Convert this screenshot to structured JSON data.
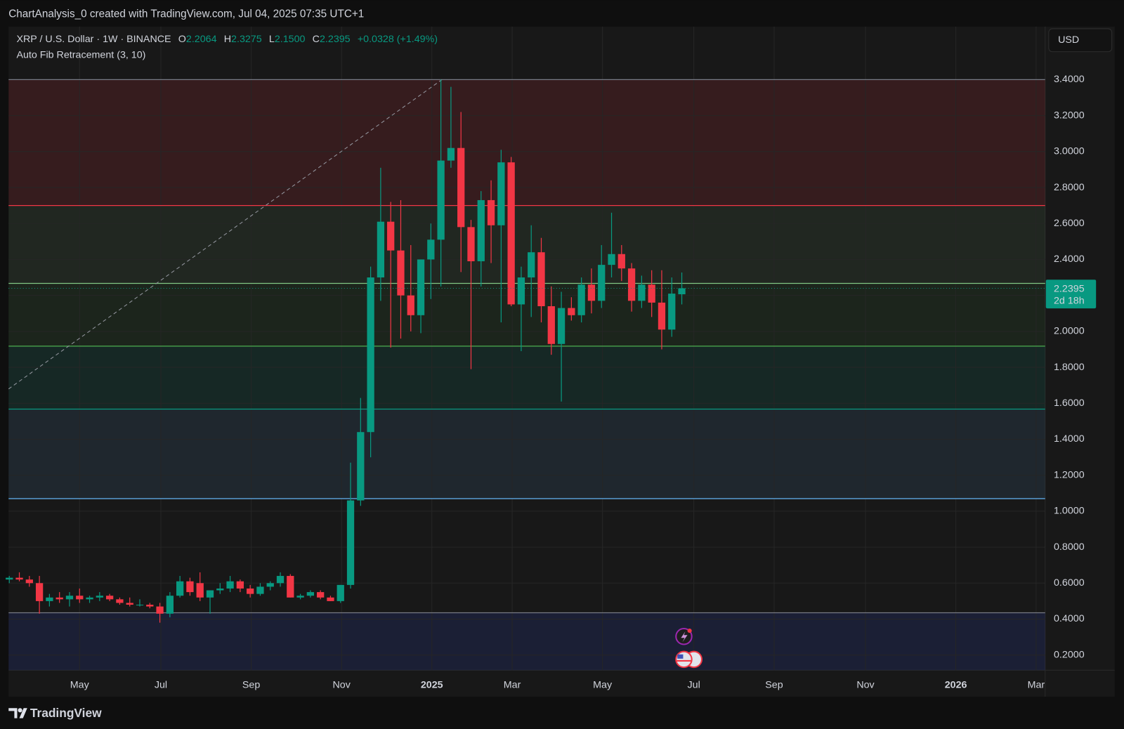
{
  "header": {
    "attribution": "ChartAnalysis_0 created with TradingView.com, Jul 04, 2025 07:35 UTC+1",
    "symbol": "XRP / U.S. Dollar · 1W · BINANCE",
    "ohlc": [
      {
        "label": "O",
        "value": "2.2064"
      },
      {
        "label": "H",
        "value": "2.3275"
      },
      {
        "label": "L",
        "value": "2.1500"
      },
      {
        "label": "C",
        "value": "2.2395"
      }
    ],
    "change": "+0.0328 (+1.49%)",
    "indicator": "Auto Fib Retracement (3, 10)",
    "currency_button": "USD"
  },
  "footer": {
    "brand": "TradingView"
  },
  "chart_data": {
    "type": "candlestick",
    "up_color": "#089981",
    "down_color": "#f23645",
    "grid": true,
    "xlim": [
      -0.07,
      103.2
    ],
    "ylim": [
      0.116,
      3.695
    ],
    "xticks": [
      {
        "value": 7.0,
        "label": "May"
      },
      {
        "value": 15.1,
        "label": "Jul"
      },
      {
        "value": 24.1,
        "label": "Sep"
      },
      {
        "value": 33.1,
        "label": "Nov"
      },
      {
        "value": 42.1,
        "label": "2025",
        "bold": true
      },
      {
        "value": 50.1,
        "label": "Mar"
      },
      {
        "value": 59.1,
        "label": "May"
      },
      {
        "value": 68.2,
        "label": "Jul"
      },
      {
        "value": 76.2,
        "label": "Sep"
      },
      {
        "value": 85.3,
        "label": "Nov"
      },
      {
        "value": 94.3,
        "label": "2026",
        "bold": true
      },
      {
        "value": 102.3,
        "label": "Mar"
      }
    ],
    "yticks": [
      {
        "value": 0.2,
        "label": "0.2000"
      },
      {
        "value": 0.4,
        "label": "0.4000"
      },
      {
        "value": 0.6,
        "label": "0.6000"
      },
      {
        "value": 0.8,
        "label": "0.8000"
      },
      {
        "value": 1,
        "label": "1.0000"
      },
      {
        "value": 1.2,
        "label": "1.2000"
      },
      {
        "value": 1.4,
        "label": "1.4000"
      },
      {
        "value": 1.6,
        "label": "1.6000"
      },
      {
        "value": 1.8,
        "label": "1.8000"
      },
      {
        "value": 2,
        "label": "2.0000"
      },
      {
        "value": 2.2,
        "label": "2.2000"
      },
      {
        "value": 2.4,
        "label": "2.4000"
      },
      {
        "value": 2.6,
        "label": "2.6000"
      },
      {
        "value": 2.8,
        "label": "2.8000"
      },
      {
        "value": 3,
        "label": "3.0000"
      },
      {
        "value": 3.2,
        "label": "3.2000"
      },
      {
        "value": 3.4,
        "label": "3.4000"
      }
    ],
    "open": [
      0.62,
      0.63,
      0.62,
      0.6,
      0.5,
      0.52,
      0.51,
      0.53,
      0.51,
      0.52,
      0.53,
      0.51,
      0.49,
      0.48,
      0.48,
      0.47,
      0.43,
      0.53,
      0.61,
      0.6,
      0.52,
      0.56,
      0.57,
      0.61,
      0.57,
      0.54,
      0.58,
      0.6,
      0.64,
      0.52,
      0.53,
      0.55,
      0.52,
      0.5,
      0.59,
      1.06,
      1.44,
      2.3,
      2.61,
      2.45,
      2.2,
      2.09,
      2.4,
      2.51,
      2.95,
      3.02,
      2.58,
      2.39,
      2.73,
      2.59,
      2.94,
      2.15,
      2.3,
      2.44,
      2.14,
      1.93,
      2.13,
      2.09,
      2.26,
      2.17,
      2.37,
      2.43,
      2.35,
      2.17,
      2.26,
      2.16,
      2.01,
      2.2064
    ],
    "high": [
      0.64,
      0.66,
      0.64,
      0.64,
      0.54,
      0.55,
      0.55,
      0.57,
      0.53,
      0.55,
      0.54,
      0.52,
      0.52,
      0.51,
      0.49,
      0.49,
      0.55,
      0.64,
      0.63,
      0.66,
      0.56,
      0.6,
      0.64,
      0.62,
      0.59,
      0.6,
      0.61,
      0.66,
      0.65,
      0.54,
      0.56,
      0.56,
      0.53,
      0.59,
      1.27,
      1.63,
      2.36,
      2.91,
      2.72,
      2.73,
      2.48,
      2.4,
      2.6,
      3.4,
      3.36,
      3.22,
      2.62,
      2.78,
      2.84,
      3.01,
      2.97,
      2.36,
      2.59,
      2.52,
      2.25,
      2.22,
      2.19,
      2.3,
      2.35,
      2.48,
      2.66,
      2.48,
      2.38,
      2.31,
      2.34,
      2.34,
      2.3,
      2.3275
    ],
    "low": [
      0.6,
      0.61,
      0.58,
      0.43,
      0.47,
      0.49,
      0.47,
      0.49,
      0.49,
      0.5,
      0.5,
      0.48,
      0.47,
      0.47,
      0.46,
      0.38,
      0.41,
      0.52,
      0.53,
      0.5,
      0.43,
      0.54,
      0.55,
      0.55,
      0.52,
      0.53,
      0.56,
      0.58,
      0.52,
      0.51,
      0.52,
      0.51,
      0.5,
      0.49,
      0.57,
      1.03,
      1.3,
      2.17,
      1.91,
      1.96,
      2.0,
      1.99,
      2.18,
      2.25,
      2.91,
      2.33,
      1.79,
      2.25,
      2.38,
      2.05,
      2.14,
      1.89,
      2.08,
      2.05,
      1.87,
      1.61,
      2.06,
      2.05,
      2.1,
      2.13,
      2.3,
      2.28,
      2.11,
      2.13,
      2.08,
      1.9,
      1.97,
      2.15
    ],
    "close": [
      0.63,
      0.62,
      0.6,
      0.5,
      0.52,
      0.51,
      0.53,
      0.51,
      0.52,
      0.53,
      0.51,
      0.49,
      0.48,
      0.48,
      0.47,
      0.43,
      0.53,
      0.61,
      0.55,
      0.52,
      0.56,
      0.57,
      0.61,
      0.57,
      0.54,
      0.58,
      0.6,
      0.64,
      0.52,
      0.53,
      0.55,
      0.52,
      0.5,
      0.59,
      1.06,
      1.44,
      2.3,
      2.61,
      2.45,
      2.2,
      2.09,
      2.4,
      2.51,
      2.95,
      3.02,
      2.58,
      2.39,
      2.73,
      2.59,
      2.94,
      2.15,
      2.3,
      2.44,
      2.14,
      1.93,
      2.13,
      2.09,
      2.26,
      2.17,
      2.37,
      2.43,
      2.35,
      2.17,
      2.26,
      2.16,
      2.01,
      2.21,
      2.2395
    ],
    "fib_levels": [
      {
        "value": 3.4,
        "color": "#787b86"
      },
      {
        "value": 2.7,
        "color": "#f23645"
      },
      {
        "value": 2.267,
        "color": "#81c784"
      },
      {
        "value": 1.918,
        "color": "#4caf50"
      },
      {
        "value": 1.568,
        "color": "#089981"
      },
      {
        "value": 1.07,
        "color": "#64b5f6"
      },
      {
        "value": 0.435,
        "color": "#787b86"
      }
    ],
    "fib_zone_colors": [
      "rgba(242,54,69,0.14)",
      "rgba(129,199,132,0.09)",
      "rgba(76,175,80,0.09)",
      "rgba(8,153,129,0.12)",
      "rgba(100,181,246,0.10)",
      "rgba(0,0,0,0)"
    ],
    "below_zone_color": "rgba(40,60,160,0.22)",
    "trendline": {
      "x": [
        -0.07,
        43.1
      ],
      "y": [
        1.68,
        3.4
      ],
      "color": "#9598a1"
    },
    "last_price": {
      "value": 2.2395,
      "label": "2.2395",
      "countdown": "2d 18h",
      "color": "#089981"
    }
  }
}
